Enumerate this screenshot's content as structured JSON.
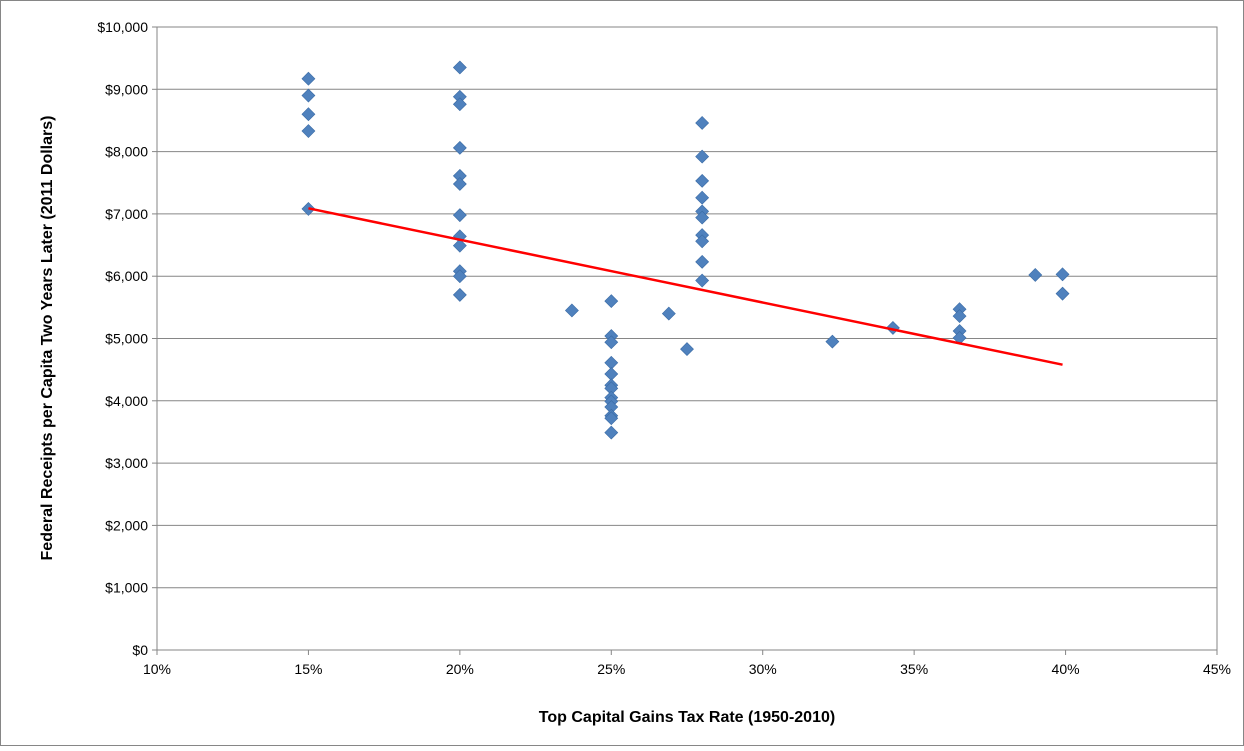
{
  "chart_data": {
    "type": "scatter",
    "title": "",
    "xlabel": "Top Capital Gains Tax Rate (1950-2010)",
    "ylabel": "Federal Receipts per Capita Two Years Later (2011 Dollars)",
    "xlim": [
      0.1,
      0.45
    ],
    "ylim": [
      0,
      10000
    ],
    "grid": "horizontal",
    "legend": "none",
    "x_tick_values": [
      0.1,
      0.15,
      0.2,
      0.25,
      0.3,
      0.35,
      0.4,
      0.45
    ],
    "x_tick_labels": [
      "10%",
      "15%",
      "20%",
      "25%",
      "30%",
      "35%",
      "40%",
      "45%"
    ],
    "y_tick_values": [
      0,
      1000,
      2000,
      3000,
      4000,
      5000,
      6000,
      7000,
      8000,
      9000,
      10000
    ],
    "y_tick_labels": [
      "$0",
      "$1,000",
      "$2,000",
      "$3,000",
      "$4,000",
      "$5,000",
      "$6,000",
      "$7,000",
      "$8,000",
      "$9,000",
      "$10,000"
    ],
    "series": [
      {
        "color": "#4F81BD",
        "marker": "diamond",
        "points": [
          [
            0.15,
            9170
          ],
          [
            0.15,
            8900
          ],
          [
            0.15,
            8600
          ],
          [
            0.15,
            8330
          ],
          [
            0.15,
            7080
          ],
          [
            0.2,
            9350
          ],
          [
            0.2,
            8880
          ],
          [
            0.2,
            8760
          ],
          [
            0.2,
            8060
          ],
          [
            0.2,
            7610
          ],
          [
            0.2,
            7480
          ],
          [
            0.2,
            6980
          ],
          [
            0.2,
            6640
          ],
          [
            0.2,
            6490
          ],
          [
            0.2,
            6080
          ],
          [
            0.2,
            6000
          ],
          [
            0.2,
            5700
          ],
          [
            0.237,
            5450
          ],
          [
            0.25,
            5600
          ],
          [
            0.25,
            5040
          ],
          [
            0.25,
            4940
          ],
          [
            0.25,
            4610
          ],
          [
            0.25,
            4430
          ],
          [
            0.25,
            4250
          ],
          [
            0.25,
            4200
          ],
          [
            0.25,
            4050
          ],
          [
            0.25,
            3990
          ],
          [
            0.25,
            3900
          ],
          [
            0.25,
            3760
          ],
          [
            0.25,
            3720
          ],
          [
            0.25,
            3490
          ],
          [
            0.269,
            5400
          ],
          [
            0.275,
            4830
          ],
          [
            0.28,
            8460
          ],
          [
            0.28,
            7920
          ],
          [
            0.28,
            7530
          ],
          [
            0.28,
            7260
          ],
          [
            0.28,
            7040
          ],
          [
            0.28,
            6940
          ],
          [
            0.28,
            6660
          ],
          [
            0.28,
            6560
          ],
          [
            0.28,
            6230
          ],
          [
            0.28,
            5930
          ],
          [
            0.323,
            4950
          ],
          [
            0.343,
            5170
          ],
          [
            0.365,
            5470
          ],
          [
            0.365,
            5360
          ],
          [
            0.365,
            5120
          ],
          [
            0.365,
            5010
          ],
          [
            0.39,
            6020
          ],
          [
            0.399,
            6030
          ],
          [
            0.399,
            5720
          ]
        ]
      }
    ],
    "trendline": {
      "type": "linear",
      "color": "#FF0000",
      "points": [
        [
          0.15,
          7090
        ],
        [
          0.399,
          4580
        ]
      ]
    }
  }
}
